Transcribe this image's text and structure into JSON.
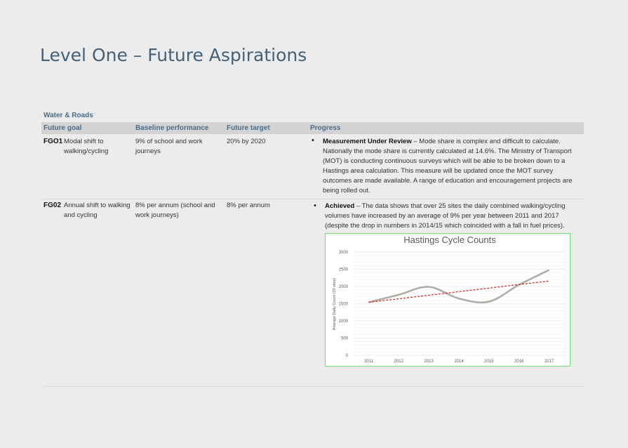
{
  "page": {
    "title": "Level One – Future Aspirations",
    "section": "Water & Roads"
  },
  "table": {
    "headers": [
      "Future goal",
      "Baseline performance",
      "Future target",
      "Progress"
    ],
    "rows": [
      {
        "code": "FGO1",
        "goal": "Modal shift to walking/cycling",
        "baseline": "9% of school and work journeys",
        "target": "20% by 2020",
        "progress_bold": "Measurement Under Review",
        "progress_text": " – Mode share is complex and difficult to calculate. Nationally the mode share is currently calculated at 14.6%. The Ministry of Transport (MOT) is conducting continuous surveys which will be able to be broken down to a Hastings area calculation. This measure will be updated once the MOT survey outcomes are made available. A range of education and encouragement projects are being rolled out."
      },
      {
        "code": "FG02",
        "goal": "Annual shift to walking and cycling",
        "baseline": "8% per annum (school and work journeys)",
        "target": "8% per annum",
        "progress_bold": "Achieved",
        "progress_text": " – The data shows that over 25 sites the daily combined walking/cycling volumes have increased by an average of 9% per year between 2011 and 2017 (despite the drop in numbers in 2014/15 which coincided with a fall in fuel prices)."
      }
    ],
    "bullet": "•"
  },
  "chart_data": {
    "type": "line",
    "title": "Hastings Cycle Counts",
    "xlabel": "",
    "ylabel": "Average Daily Count (25 sites)",
    "categories": [
      "2011",
      "2012",
      "2013",
      "2014",
      "2015",
      "2016",
      "2017"
    ],
    "ylim": [
      0,
      3000
    ],
    "yticks": [
      "0",
      "500",
      "1000",
      "1500",
      "2000",
      "2500",
      "3000"
    ],
    "grid": true,
    "series": [
      {
        "values": [
          1540,
          1760,
          1990,
          1650,
          1560,
          2050,
          2480
        ],
        "color": "#b0aca6",
        "style": "smooth"
      },
      {
        "values": [
          1540,
          1643,
          1747,
          1850,
          1953,
          2057,
          2160
        ],
        "color": "#d62020",
        "style": "dashed-trend"
      }
    ],
    "border_color": "#6ee36e"
  }
}
